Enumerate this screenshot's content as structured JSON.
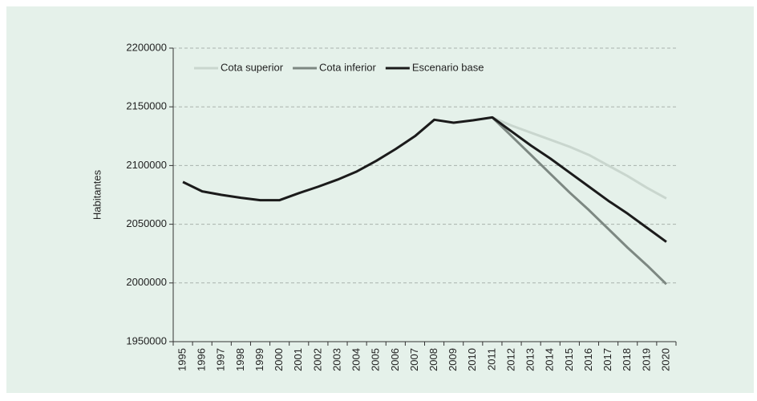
{
  "chart_data": {
    "type": "line",
    "y_label": "Habitantes",
    "categories": [
      "1995",
      "1996",
      "1997",
      "1998",
      "1999",
      "2000",
      "2001",
      "2002",
      "2003",
      "2004",
      "2005",
      "2006",
      "2007",
      "2008",
      "2009",
      "2010",
      "2011",
      "2012",
      "2013",
      "2014",
      "2015",
      "2016",
      "2017",
      "2018",
      "2019",
      "2020"
    ],
    "series": [
      {
        "name": "Cota superior",
        "color": "#c9d6ce",
        "values": [
          null,
          null,
          null,
          null,
          null,
          null,
          null,
          null,
          null,
          null,
          null,
          null,
          null,
          null,
          null,
          null,
          2141000,
          2134000,
          2128000,
          2122000,
          2116000,
          2109000,
          2100000,
          2091000,
          2081000,
          2072000
        ]
      },
      {
        "name": "Cota inferior",
        "color": "#7d8882",
        "values": [
          null,
          null,
          null,
          null,
          null,
          null,
          null,
          null,
          null,
          null,
          null,
          null,
          null,
          null,
          null,
          null,
          2141000,
          2125000,
          2109000,
          2093000,
          2077000,
          2062000,
          2046000,
          2030000,
          2015000,
          1999000
        ]
      },
      {
        "name": "Escenario base",
        "color": "#1b1b1b",
        "values": [
          2086000,
          2078000,
          2075000,
          2072500,
          2070500,
          2070500,
          2076500,
          2082000,
          2088000,
          2095000,
          2104000,
          2114000,
          2125000,
          2139000,
          2136500,
          2138500,
          2141000,
          2129000,
          2117000,
          2106000,
          2094000,
          2082000,
          2070000,
          2059000,
          2047000,
          2035000
        ]
      }
    ],
    "ylim": [
      1950000,
      2200000
    ],
    "yticks": [
      1950000,
      2000000,
      2050000,
      2100000,
      2150000,
      2200000
    ],
    "grid": true,
    "legend": "top-left"
  }
}
